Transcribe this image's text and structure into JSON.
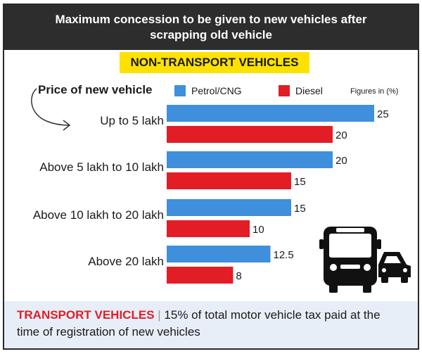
{
  "header": {
    "title_line1": "Maximum concession to be given to new vehicles after",
    "title_line2": "scrapping old vehicle"
  },
  "subtitle": "NON-TRANSPORT VEHICLES",
  "price_label": "Price of new vehicle",
  "legend": {
    "petrol": "Petrol/CNG",
    "diesel": "Diesel"
  },
  "figures_note": "Figures in (%)",
  "colors": {
    "petrol": "#3f8fdc",
    "diesel": "#e21d25",
    "header_bg": "#2d2d2d",
    "subtitle_bg": "#ffe100",
    "footer_bg": "#e8eef7"
  },
  "chart_data": {
    "type": "bar",
    "orientation": "horizontal",
    "categories": [
      "Up to 5 lakh",
      "Above 5 lakh to 10 lakh",
      "Above 10 lakh to 20 lakh",
      "Above 20 lakh"
    ],
    "series": [
      {
        "name": "Petrol/CNG",
        "values": [
          25,
          20,
          15,
          12.5
        ],
        "labels": [
          "25",
          "20",
          "15",
          "12.5"
        ]
      },
      {
        "name": "Diesel",
        "values": [
          20,
          15,
          10,
          8
        ],
        "labels": [
          "20",
          "15",
          "10",
          "8"
        ]
      }
    ],
    "xlim": [
      0,
      25
    ],
    "grid": false,
    "legend_position": "top"
  },
  "footer": {
    "label": "TRANSPORT VEHICLES",
    "separator": "|",
    "text": "15% of total motor vehicle tax paid at the time of registration of new vehicles"
  },
  "icons": [
    "arrow-icon",
    "bus-icon",
    "car-icon"
  ]
}
